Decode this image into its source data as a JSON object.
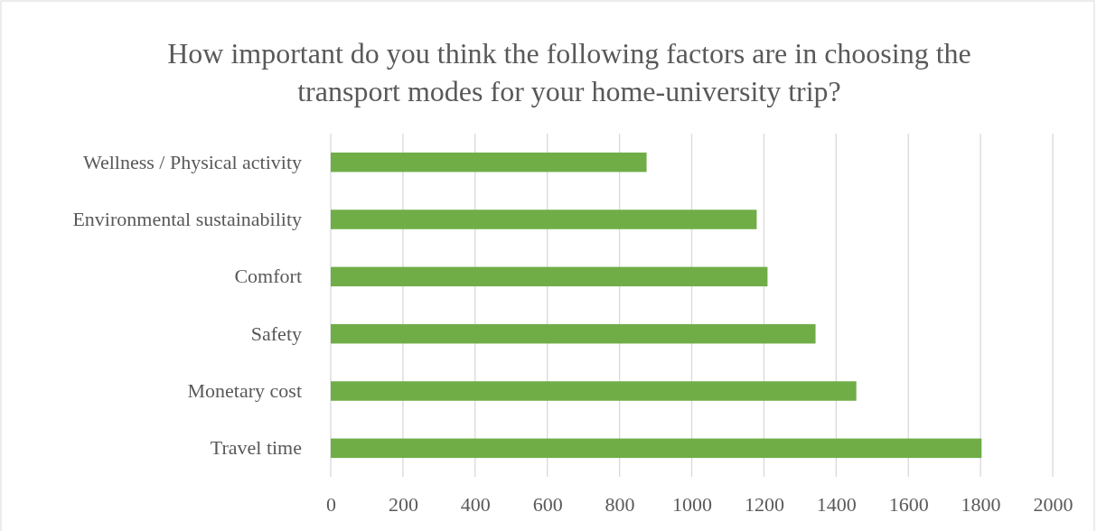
{
  "chart_data": {
    "type": "bar",
    "orientation": "horizontal",
    "title": "How important do you think the following factors are in choosing the transport modes for your home-university trip?",
    "categories": [
      "Wellness / Physical activity",
      "Environmental sustainability",
      "Comfort",
      "Safety",
      "Monetary cost",
      "Travel time"
    ],
    "values": [
      875,
      1180,
      1210,
      1343,
      1456,
      1803
    ],
    "color": "#70ad47",
    "xlim": [
      0,
      2000
    ],
    "xticks": [
      0,
      200,
      400,
      600,
      800,
      1000,
      1200,
      1400,
      1600,
      1800,
      2000
    ],
    "grid": "x"
  }
}
